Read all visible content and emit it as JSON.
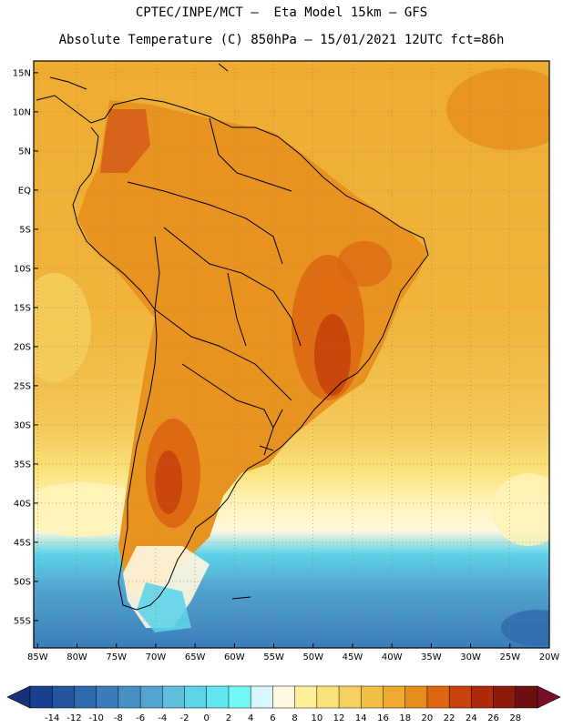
{
  "header": {
    "title_line1": "CPTEC/INPE/MCT –  Eta Model 15km – GFS",
    "title_line2": "Absolute Temperature (C) 850hPa – 15/01/2021 12UTC fct=86h"
  },
  "map": {
    "lat_labels": [
      "15N",
      "10N",
      "5N",
      "EQ",
      "5S",
      "10S",
      "15S",
      "20S",
      "25S",
      "30S",
      "35S",
      "40S",
      "45S",
      "50S",
      "55S"
    ],
    "lat_values": [
      15,
      10,
      5,
      0,
      -5,
      -10,
      -15,
      -20,
      -25,
      -30,
      -35,
      -40,
      -45,
      -50,
      -55
    ],
    "lon_labels": [
      "85W",
      "80W",
      "75W",
      "70W",
      "65W",
      "60W",
      "55W",
      "50W",
      "45W",
      "40W",
      "35W",
      "30W",
      "25W",
      "20W"
    ],
    "lon_values": [
      -85,
      -80,
      -75,
      -70,
      -65,
      -60,
      -55,
      -50,
      -45,
      -40,
      -35,
      -30,
      -25,
      -20
    ],
    "extent": {
      "lon_min": -85.5,
      "lon_max": -20,
      "lat_min": -58.5,
      "lat_max": 16.5
    }
  },
  "colorbar": {
    "labels": [
      "-14",
      "-12",
      "-10",
      "-8",
      "-6",
      "-4",
      "-2",
      "0",
      "2",
      "4",
      "6",
      "8",
      "10",
      "12",
      "14",
      "16",
      "18",
      "20",
      "22",
      "24",
      "26",
      "28"
    ],
    "colors": [
      "#1a3f8f",
      "#24559e",
      "#2e6aad",
      "#3a7dba",
      "#4690c4",
      "#52a3cf",
      "#5fbfdc",
      "#5ed3e8",
      "#64e6f0",
      "#72f7f7",
      "#d8f6fb",
      "#fff8e0",
      "#ffef99",
      "#fbe27a",
      "#f5d060",
      "#f2bf46",
      "#eea92e",
      "#e88c1e",
      "#dc6612",
      "#c8420c",
      "#ad2a0a",
      "#8b1a0c",
      "#6e1010"
    ],
    "left_arrow_color": "#16307a",
    "right_arrow_color": "#7a0f28"
  }
}
